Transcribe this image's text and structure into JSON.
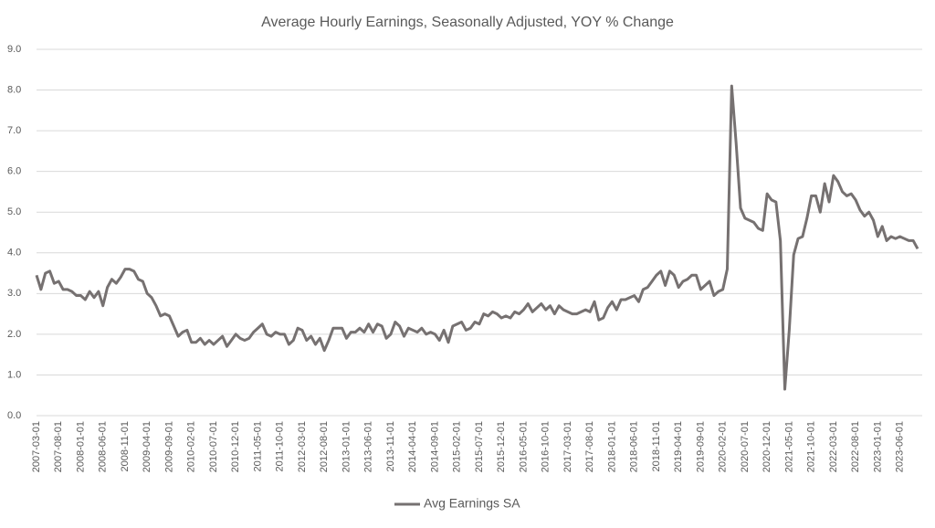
{
  "chart_data": {
    "type": "line",
    "title": "Average Hourly Earnings, Seasonally Adjusted, YOY % Change",
    "categories": [
      "2007-03-01",
      null,
      null,
      null,
      null,
      "2007-08-01",
      null,
      null,
      null,
      null,
      "2008-01-01",
      null,
      null,
      null,
      null,
      "2008-06-01",
      null,
      null,
      null,
      null,
      "2008-11-01",
      null,
      null,
      null,
      null,
      "2009-04-01",
      null,
      null,
      null,
      null,
      "2009-09-01",
      null,
      null,
      null,
      null,
      "2010-02-01",
      null,
      null,
      null,
      null,
      "2010-07-01",
      null,
      null,
      null,
      null,
      "2010-12-01",
      null,
      null,
      null,
      null,
      "2011-05-01",
      null,
      null,
      null,
      null,
      "2011-10-01",
      null,
      null,
      null,
      null,
      "2012-03-01",
      null,
      null,
      null,
      null,
      "2012-08-01",
      null,
      null,
      null,
      null,
      "2013-01-01",
      null,
      null,
      null,
      null,
      "2013-06-01",
      null,
      null,
      null,
      null,
      "2013-11-01",
      null,
      null,
      null,
      null,
      "2014-04-01",
      null,
      null,
      null,
      null,
      "2014-09-01",
      null,
      null,
      null,
      null,
      "2015-02-01",
      null,
      null,
      null,
      null,
      "2015-07-01",
      null,
      null,
      null,
      null,
      "2015-12-01",
      null,
      null,
      null,
      null,
      "2016-05-01",
      null,
      null,
      null,
      null,
      "2016-10-01",
      null,
      null,
      null,
      null,
      "2017-03-01",
      null,
      null,
      null,
      null,
      "2017-08-01",
      null,
      null,
      null,
      null,
      "2018-01-01",
      null,
      null,
      null,
      null,
      "2018-06-01",
      null,
      null,
      null,
      null,
      "2018-11-01",
      null,
      null,
      null,
      null,
      "2019-04-01",
      null,
      null,
      null,
      null,
      "2019-09-01",
      null,
      null,
      null,
      null,
      "2020-02-01",
      null,
      null,
      null,
      null,
      "2020-07-01",
      null,
      null,
      null,
      null,
      "2020-12-01",
      null,
      null,
      null,
      null,
      "2021-05-01",
      null,
      null,
      null,
      null,
      "2021-10-01",
      null,
      null,
      null,
      null,
      "2022-03-01",
      null,
      null,
      null,
      null,
      "2022-08-01",
      null,
      null,
      null,
      null,
      "2023-01-01",
      null,
      null,
      null,
      null,
      "2023-06-01",
      null,
      null,
      null,
      null
    ],
    "series": [
      {
        "name": "Avg Earnings SA",
        "color": "#767171",
        "values": [
          3.45,
          3.1,
          3.5,
          3.55,
          3.25,
          3.3,
          3.1,
          3.1,
          3.05,
          2.95,
          2.95,
          2.85,
          3.05,
          2.9,
          3.05,
          2.7,
          3.15,
          3.35,
          3.25,
          3.4,
          3.6,
          3.6,
          3.55,
          3.35,
          3.3,
          3.0,
          2.9,
          2.7,
          2.45,
          2.5,
          2.45,
          2.2,
          1.95,
          2.05,
          2.1,
          1.8,
          1.8,
          1.9,
          1.75,
          1.85,
          1.75,
          1.85,
          1.95,
          1.7,
          1.85,
          2.0,
          1.9,
          1.85,
          1.9,
          2.05,
          2.15,
          2.25,
          2.0,
          1.95,
          2.05,
          2.0,
          2.0,
          1.75,
          1.85,
          2.15,
          2.1,
          1.85,
          1.95,
          1.75,
          1.9,
          1.6,
          1.85,
          2.15,
          2.15,
          2.15,
          1.9,
          2.05,
          2.05,
          2.15,
          2.05,
          2.25,
          2.05,
          2.25,
          2.2,
          1.9,
          2.0,
          2.3,
          2.2,
          1.95,
          2.15,
          2.1,
          2.05,
          2.15,
          2.0,
          2.05,
          2.0,
          1.85,
          2.1,
          1.8,
          2.2,
          2.25,
          2.3,
          2.1,
          2.15,
          2.3,
          2.25,
          2.5,
          2.45,
          2.55,
          2.5,
          2.4,
          2.45,
          2.4,
          2.55,
          2.5,
          2.6,
          2.75,
          2.55,
          2.65,
          2.75,
          2.6,
          2.7,
          2.5,
          2.7,
          2.6,
          2.55,
          2.5,
          2.5,
          2.55,
          2.6,
          2.55,
          2.8,
          2.35,
          2.4,
          2.65,
          2.8,
          2.6,
          2.85,
          2.85,
          2.9,
          2.95,
          2.8,
          3.1,
          3.15,
          3.3,
          3.45,
          3.55,
          3.2,
          3.55,
          3.45,
          3.15,
          3.3,
          3.35,
          3.45,
          3.45,
          3.1,
          3.2,
          3.3,
          2.95,
          3.05,
          3.1,
          3.6,
          8.1,
          6.7,
          5.1,
          4.85,
          4.8,
          4.75,
          4.6,
          4.55,
          5.45,
          5.3,
          5.25,
          4.3,
          0.65,
          2.1,
          3.95,
          4.35,
          4.4,
          4.85,
          5.4,
          5.4,
          5.0,
          5.7,
          5.25,
          5.9,
          5.75,
          5.5,
          5.4,
          5.45,
          5.3,
          5.05,
          4.9,
          5.0,
          4.8,
          4.4,
          4.65,
          4.3,
          4.4,
          4.35,
          4.4,
          4.35,
          4.3,
          4.3,
          4.1
        ]
      }
    ],
    "ylim": [
      0,
      9
    ],
    "yticks": [
      {
        "value": 0,
        "label": "0.0"
      },
      {
        "value": 1,
        "label": "1.0"
      },
      {
        "value": 2,
        "label": "2.0"
      },
      {
        "value": 3,
        "label": "3.0"
      },
      {
        "value": 4,
        "label": "4.0"
      },
      {
        "value": 5,
        "label": "5.0"
      },
      {
        "value": 6,
        "label": "6.0"
      },
      {
        "value": 7,
        "label": "7.0"
      },
      {
        "value": 8,
        "label": "8.0"
      },
      {
        "value": 9,
        "label": "9.0"
      }
    ],
    "grid": true,
    "legend": "bottom"
  }
}
